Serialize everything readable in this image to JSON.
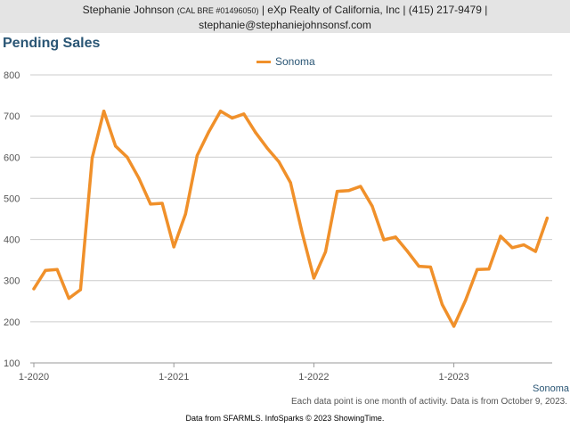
{
  "header": {
    "name": "Stephanie Johnson",
    "license": "(CAL BRE #01496050)",
    "company": "| eXp Realty of California, Inc | (415) 217-9479 |",
    "email": "stephanie@stephaniejohnsonsf.com"
  },
  "footnote": "Each data point is one month of activity. Data is from October 9, 2023.",
  "footer": "Data from SFARMLS. InfoSparks © 2023 ShowingTime.",
  "series_label": "Sonoma",
  "colors": {
    "line": "#f0902a",
    "grid": "#cccccc",
    "title": "#2a5675"
  },
  "chart_data": {
    "type": "line",
    "title": "Pending Sales",
    "xlabel": "",
    "ylabel": "",
    "ylim": [
      100,
      800
    ],
    "yticks": [
      100,
      200,
      300,
      400,
      500,
      600,
      700,
      800
    ],
    "xticks": [
      {
        "label": "1-2020",
        "index": 0
      },
      {
        "label": "1-2021",
        "index": 12
      },
      {
        "label": "1-2022",
        "index": 24
      },
      {
        "label": "1-2023",
        "index": 36
      }
    ],
    "x": [
      "1-2020",
      "2-2020",
      "3-2020",
      "4-2020",
      "5-2020",
      "6-2020",
      "7-2020",
      "8-2020",
      "9-2020",
      "10-2020",
      "11-2020",
      "12-2020",
      "1-2021",
      "2-2021",
      "3-2021",
      "4-2021",
      "5-2021",
      "6-2021",
      "7-2021",
      "8-2021",
      "9-2021",
      "10-2021",
      "11-2021",
      "12-2021",
      "1-2022",
      "2-2022",
      "3-2022",
      "4-2022",
      "5-2022",
      "6-2022",
      "7-2022",
      "8-2022",
      "9-2022",
      "10-2022",
      "11-2022",
      "12-2022",
      "1-2023",
      "2-2023",
      "3-2023",
      "4-2023",
      "5-2023",
      "6-2023",
      "7-2023",
      "8-2023",
      "9-2023"
    ],
    "grid": true,
    "legend": "top-center",
    "series": [
      {
        "name": "Sonoma",
        "values": [
          280,
          325,
          327,
          257,
          278,
          598,
          712,
          627,
          600,
          549,
          486,
          488,
          382,
          462,
          604,
          662,
          712,
          695,
          705,
          660,
          622,
          589,
          538,
          416,
          306,
          370,
          517,
          519,
          529,
          481,
          399,
          406,
          372,
          335,
          333,
          242,
          189,
          252,
          327,
          328,
          408,
          380,
          387,
          371,
          452
        ]
      }
    ]
  }
}
